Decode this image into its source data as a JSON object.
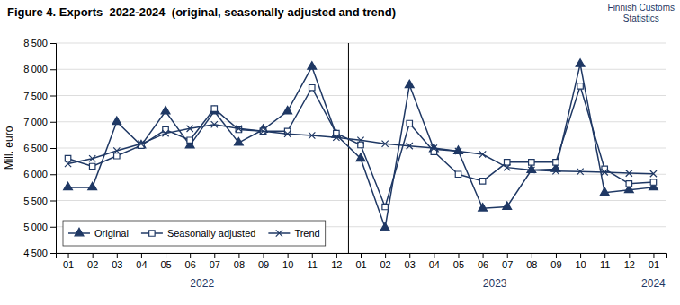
{
  "chart_data": {
    "type": "line",
    "title": "Figure 4. Exports  2022-2024  (original, seasonally adjusted and trend)",
    "subtitle": "Finnish Customs\nStatistics",
    "ylabel": "Mill. euro",
    "annotations": [
      "2022",
      "2023",
      "2024"
    ],
    "categories": [
      "01",
      "02",
      "03",
      "04",
      "05",
      "06",
      "07",
      "08",
      "09",
      "10",
      "11",
      "12",
      "01",
      "02",
      "03",
      "04",
      "05",
      "06",
      "07",
      "08",
      "09",
      "10",
      "11",
      "12",
      "01"
    ],
    "series": [
      {
        "name": "Original",
        "color": "#1F3864",
        "marker": "triangle",
        "values": [
          5750,
          5750,
          7000,
          6550,
          7200,
          6550,
          7200,
          6600,
          6850,
          7200,
          8050,
          6750,
          6300,
          4980,
          7700,
          6480,
          6440,
          5350,
          5380,
          6080,
          6100,
          8100,
          5650,
          5700,
          5750
        ]
      },
      {
        "name": "Seasonally adjusted",
        "color": "#1F3864",
        "marker": "square-open",
        "values": [
          6300,
          6150,
          6350,
          6550,
          6850,
          6650,
          7250,
          6850,
          6820,
          6820,
          7650,
          6780,
          6560,
          5380,
          6970,
          6430,
          6000,
          5870,
          6230,
          6230,
          6230,
          7680,
          6100,
          5820,
          5850
        ]
      },
      {
        "name": "Trend",
        "color": "#1F3864",
        "marker": "x",
        "values": [
          6200,
          6300,
          6450,
          6580,
          6780,
          6870,
          6950,
          6870,
          6820,
          6770,
          6740,
          6700,
          6650,
          6580,
          6540,
          6500,
          6440,
          6380,
          6130,
          6080,
          6060,
          6050,
          6040,
          6020,
          6010
        ]
      }
    ],
    "color": "#1F3864",
    "ylim": [
      4500,
      8500
    ],
    "yticks": [
      {
        "value": 4500,
        "label": "4 500"
      },
      {
        "value": 5000,
        "label": "5 000"
      },
      {
        "value": 5500,
        "label": "5 500"
      },
      {
        "value": 6000,
        "label": "6 000"
      },
      {
        "value": 6500,
        "label": "6 500"
      },
      {
        "value": 7000,
        "label": "7 000"
      },
      {
        "value": 7500,
        "label": "7 500"
      },
      {
        "value": 8000,
        "label": "8 000"
      },
      {
        "value": 8500,
        "label": "8 500"
      }
    ],
    "grid": true,
    "legend": "lower left"
  }
}
